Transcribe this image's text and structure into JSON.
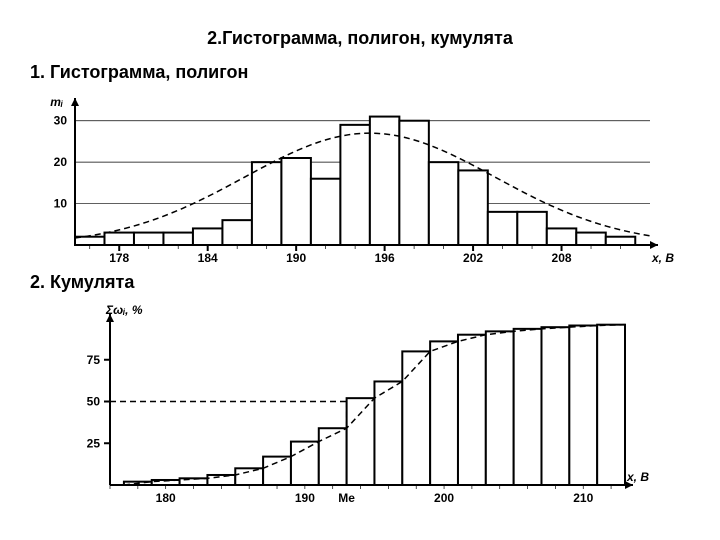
{
  "title_main": "2.Гистограмма, полигон, кумулята",
  "subtitle1": "1. Гистограмма, полигон",
  "subtitle2": "2. Кумулята",
  "chart1": {
    "type": "histogram",
    "y_title": "mᵢ",
    "x_title": "x, B",
    "xlim": [
      175,
      214
    ],
    "ylim": [
      0,
      35
    ],
    "y_ticks": [
      10,
      20,
      30
    ],
    "x_tick_labels": [
      178,
      184,
      190,
      196,
      202,
      208
    ],
    "x_minor_step": 2,
    "bin_width": 2,
    "bin_start": 175,
    "bars": [
      2,
      3,
      3,
      3,
      4,
      6,
      20,
      21,
      16,
      29,
      31,
      30,
      20,
      18,
      8,
      8,
      4,
      3,
      2
    ],
    "curve_peak_x": 195,
    "curve_peak_y": 27,
    "curve_sigma": 8.5,
    "background_color": "#ffffff",
    "ink_color": "#000000"
  },
  "chart2": {
    "type": "cumulative",
    "y_title": "Σωᵢ, %",
    "x_title": "x, B",
    "xlim": [
      176,
      213
    ],
    "ylim": [
      0,
      100
    ],
    "y_ticks": [
      25,
      50,
      75
    ],
    "x_tick_labels": [
      180,
      190,
      200,
      210
    ],
    "me_label": "Me",
    "me_x": 193,
    "bin_width": 2,
    "bin_start": 177,
    "cum_values": [
      2,
      3,
      4,
      6,
      10,
      17,
      26,
      34,
      52,
      62,
      80,
      86,
      90,
      92,
      93.5,
      94.5,
      95.5,
      96
    ],
    "smooth_curve": true,
    "background_color": "#ffffff",
    "ink_color": "#000000"
  }
}
